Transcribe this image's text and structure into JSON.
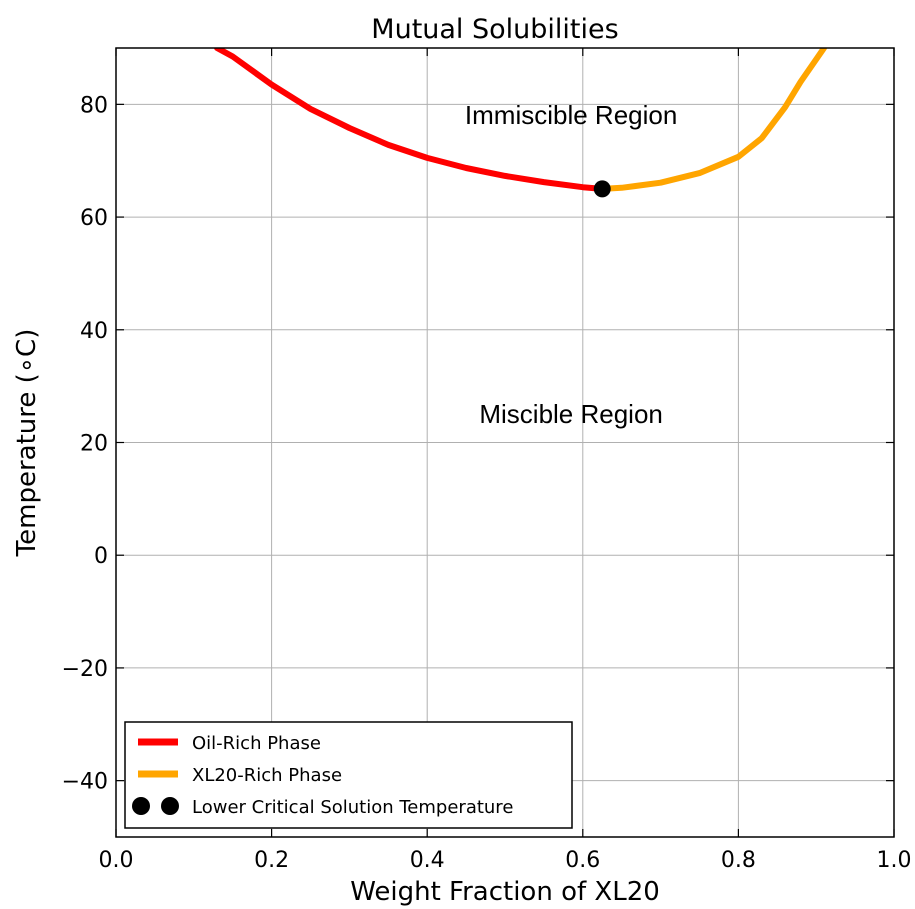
{
  "chart_data": {
    "type": "line",
    "title": "Mutual Solubilities",
    "xlabel": "Weight Fraction of XL20",
    "ylabel": "Temperature (∘C)",
    "xlim": [
      0.0,
      1.0
    ],
    "ylim": [
      -50,
      90
    ],
    "grid": true,
    "legend_placement": "lower-left",
    "xticks": [
      0.0,
      0.2,
      0.4,
      0.6,
      0.8,
      1.0
    ],
    "xtick_labels": [
      "0.0",
      "0.2",
      "0.4",
      "0.6",
      "0.8",
      "1.0"
    ],
    "yticks": [
      -40,
      -20,
      0,
      20,
      40,
      60,
      80
    ],
    "ytick_labels": [
      "−40",
      "−20",
      "0",
      "20",
      "40",
      "60",
      "80"
    ],
    "series": [
      {
        "name": "Oil-Rich Phase",
        "color": "#ff0000",
        "style": "line",
        "x": [
          0.13,
          0.15,
          0.2,
          0.25,
          0.3,
          0.35,
          0.4,
          0.45,
          0.5,
          0.55,
          0.6,
          0.625
        ],
        "y": [
          90,
          88.5,
          83.5,
          79.2,
          75.8,
          72.8,
          70.5,
          68.7,
          67.3,
          66.2,
          65.3,
          65.0
        ]
      },
      {
        "name": "XL20-Rich Phase",
        "color": "#ffa500",
        "style": "line",
        "x": [
          0.625,
          0.65,
          0.7,
          0.75,
          0.8,
          0.83,
          0.86,
          0.88,
          0.9,
          0.91
        ],
        "y": [
          65.0,
          65.2,
          66.1,
          67.8,
          70.7,
          74.0,
          79.5,
          84.0,
          88.0,
          90
        ]
      },
      {
        "name": "Lower Critical Solution Temperature",
        "color": "#000000",
        "style": "marker",
        "x": [
          0.625
        ],
        "y": [
          65.0
        ]
      }
    ],
    "annotations": [
      {
        "text": "Immiscible Region",
        "x": 0.585,
        "y": 76.5
      },
      {
        "text": "Miscible Region",
        "x": 0.585,
        "y": 23.5
      }
    ]
  }
}
